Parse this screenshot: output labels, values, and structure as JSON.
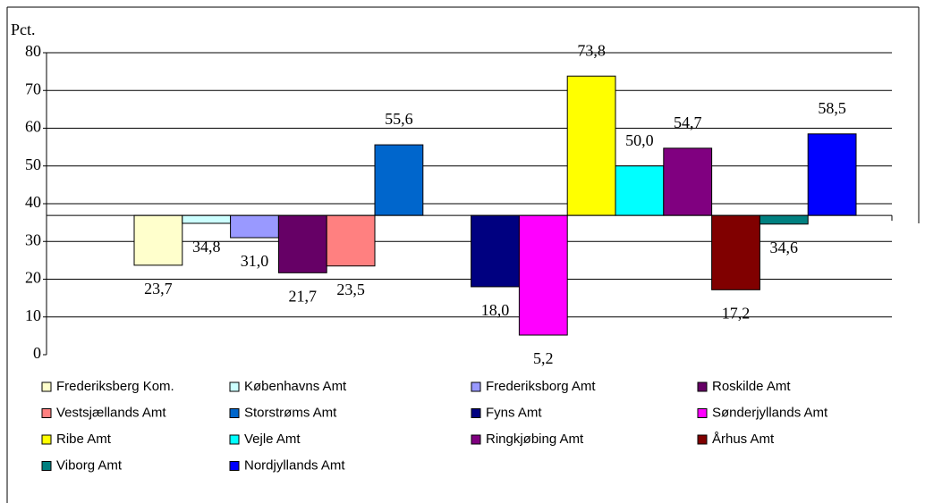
{
  "chart_data": {
    "type": "bar",
    "y_label": "Pct.",
    "categories": [
      null,
      null
    ],
    "x_axis_crosses": 36.9,
    "ylim": [
      0,
      80
    ],
    "yticks": [
      0,
      10,
      20,
      30,
      40,
      50,
      60,
      70,
      80
    ],
    "grid": true,
    "series": [
      {
        "name": "Frederiksberg Kom.",
        "color": "#ffffcc",
        "values": [
          23.7,
          null
        ],
        "value_labels": [
          "23,7",
          null
        ]
      },
      {
        "name": "Københavns Amt",
        "color": "#ccffff",
        "values": [
          34.8,
          null
        ],
        "value_labels": [
          "34,8",
          null
        ]
      },
      {
        "name": "Frederiksborg Amt",
        "color": "#9999ff",
        "values": [
          31.0,
          null
        ],
        "value_labels": [
          "31,0",
          null
        ]
      },
      {
        "name": "Roskilde Amt",
        "color": "#660066",
        "values": [
          21.7,
          null
        ],
        "value_labels": [
          "21,7",
          null
        ]
      },
      {
        "name": "Vestsjællands Amt",
        "color": "#ff8080",
        "values": [
          23.5,
          null
        ],
        "value_labels": [
          "23,5",
          null
        ]
      },
      {
        "name": "Storstrøms Amt",
        "color": "#0066cc",
        "values": [
          55.6,
          null
        ],
        "value_labels": [
          "55,6",
          null
        ]
      },
      {
        "name": "Fyns Amt",
        "color": "#000080",
        "values": [
          null,
          18.0
        ],
        "value_labels": [
          null,
          "18,0"
        ]
      },
      {
        "name": "Sønderjyllands Amt",
        "color": "#ff00ff",
        "values": [
          null,
          5.2
        ],
        "value_labels": [
          null,
          "5,2"
        ]
      },
      {
        "name": "Ribe Amt",
        "color": "#ffff00",
        "values": [
          null,
          73.8
        ],
        "value_labels": [
          null,
          "73,8"
        ]
      },
      {
        "name": "Vejle Amt",
        "color": "#00ffff",
        "values": [
          null,
          50.0
        ],
        "value_labels": [
          null,
          "50,0"
        ]
      },
      {
        "name": "Ringkjøbing Amt",
        "color": "#800080",
        "values": [
          null,
          54.7
        ],
        "value_labels": [
          null,
          "54,7"
        ]
      },
      {
        "name": "Århus Amt",
        "color": "#800000",
        "values": [
          null,
          17.2
        ],
        "value_labels": [
          null,
          "17,2"
        ]
      },
      {
        "name": "Viborg Amt",
        "color": "#008080",
        "values": [
          null,
          34.6
        ],
        "value_labels": [
          null,
          "34,6"
        ]
      },
      {
        "name": "Nordjyllands Amt",
        "color": "#0000ff",
        "values": [
          null,
          58.5
        ],
        "value_labels": [
          null,
          "58,5"
        ]
      }
    ]
  }
}
